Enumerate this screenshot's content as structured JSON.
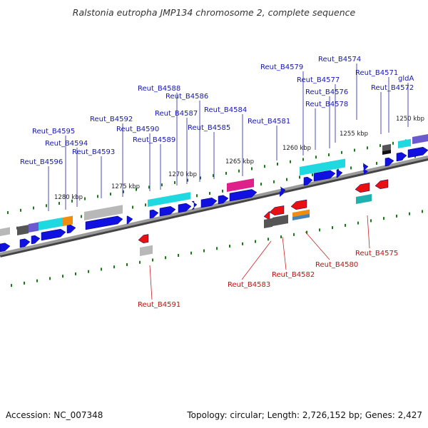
{
  "title": "Ralstonia eutropha JMP134 chromosome 2, complete sequence",
  "footer": {
    "accession": "Accession: NC_007348",
    "summary": "Topology: circular; Length: 2,726,152 bp; Genes: 2,427"
  },
  "colors": {
    "backbone": "#8a8a8a",
    "forward_gene": "#1010e0",
    "reverse_gene": "#e81010",
    "tick": "#1a7a1a",
    "top_label": "#1616b0",
    "bottom_label": "#c01010",
    "cyan": "#20d8e0",
    "gray": "#b8b8b8",
    "magenta": "#e0208a",
    "orange": "#f08c10",
    "purple": "#6a5acd",
    "darkgray": "#555555",
    "teal": "#20b0b0"
  },
  "scale_labels": [
    "1250 kbp",
    "1255 kbp",
    "1260 kbp",
    "1265 kbp",
    "1270 kbp",
    "1275 kbp",
    "1280 kbp"
  ],
  "top_gene_labels": [
    "gldA",
    "Reut_B4571",
    "Reut_B4572",
    "Reut_B4574",
    "Reut_B4576",
    "Reut_B4577",
    "Reut_B4578",
    "Reut_B4579",
    "Reut_B4581",
    "Reut_B4584",
    "Reut_B4585",
    "Reut_B4586",
    "Reut_B4587",
    "Reut_B4588",
    "Reut_B4589",
    "Reut_B4590",
    "Reut_B4592",
    "Reut_B4593",
    "Reut_B4594",
    "Reut_B4595",
    "Reut_B4596"
  ],
  "bottom_gene_labels": [
    "Reut_B4575",
    "Reut_B4580",
    "Reut_B4582",
    "Reut_B4583",
    "Reut_B4591"
  ]
}
